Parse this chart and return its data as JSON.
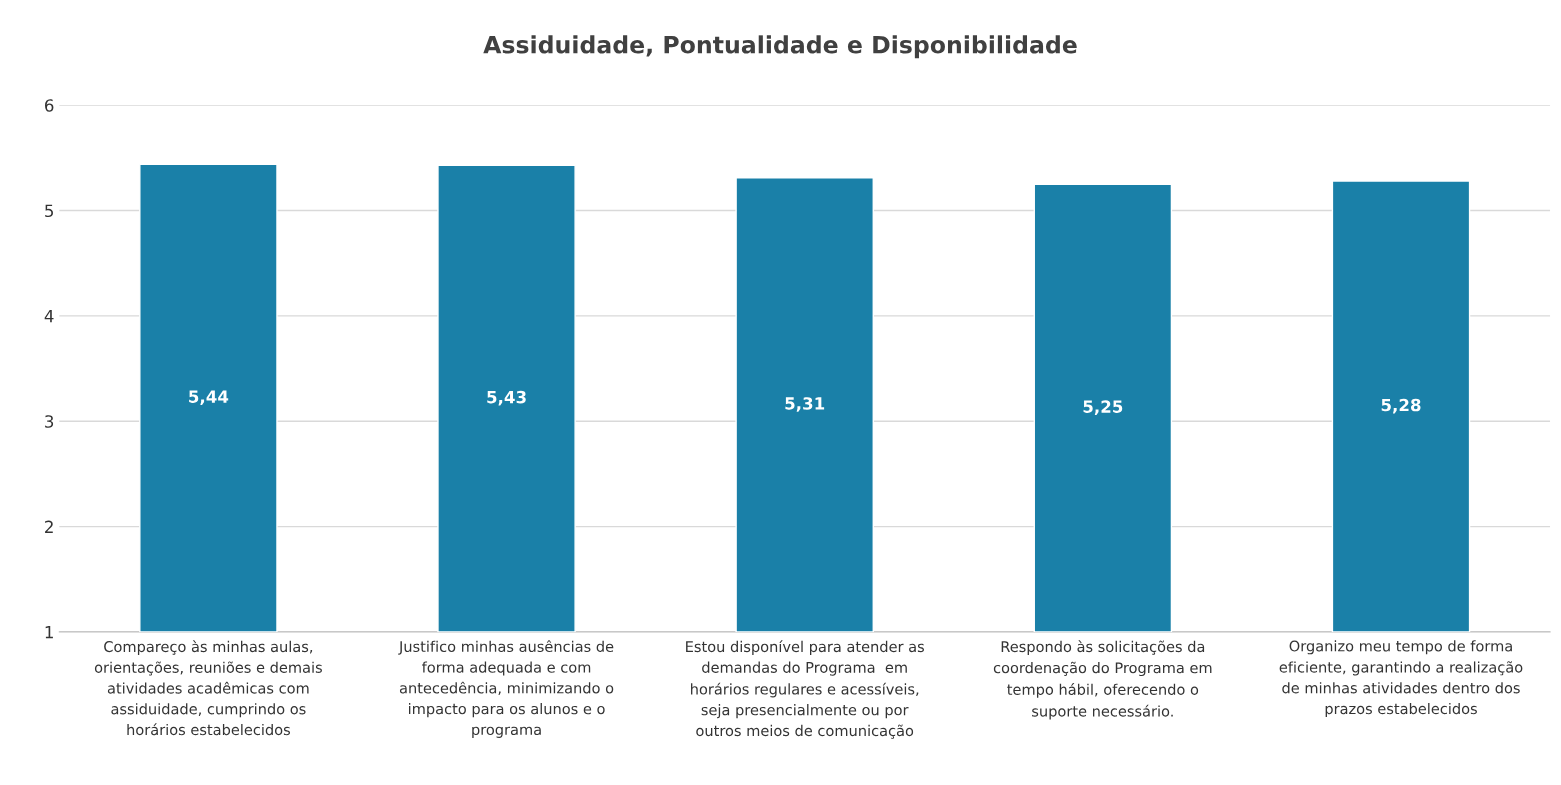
{
  "chart_data": {
    "type": "bar",
    "title": "Assiduidade, Pontualidade e Disponibilidade",
    "categories": [
      "Compareço às minhas aulas,\norientações, reuniões e demais\natividades acadêmicas com\nassiduidade, cumprindo os\nhorários estabelecidos",
      "Justifico minhas ausências de\nforma adequada e com\nantecedência, minimizando o\nimpacto para os alunos e o\nprograma",
      "Estou disponível para atender as\ndemandas do Programa  em\nhorários regulares e acessíveis,\nseja presencialmente ou por\noutros meios de comunicação",
      "Respondo às solicitações da\ncoordenação do Programa em\ntempo hábil, oferecendo o\nsuporte necessário.",
      "Organizo meu tempo de forma\neficiente, garantindo a realização\nde minhas atividades dentro dos\nprazos estabelecidos"
    ],
    "values": [
      5.44,
      5.43,
      5.31,
      5.25,
      5.28
    ],
    "value_labels": [
      "5,44",
      "5,43",
      "5,31",
      "5,25",
      "5,28"
    ],
    "color": "#1a80a8",
    "ylim": [
      1,
      6
    ],
    "yticks": [
      1,
      2,
      3,
      4,
      5,
      6
    ],
    "grid": "y"
  }
}
